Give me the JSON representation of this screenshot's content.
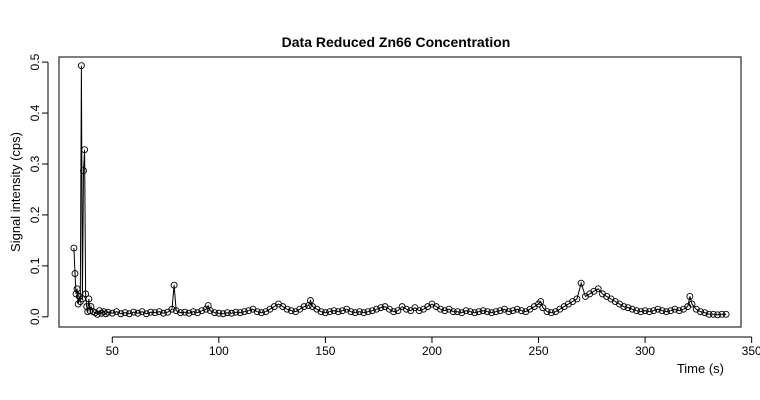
{
  "chart_data": {
    "type": "line",
    "title": "Data Reduced Zn66 Concentration",
    "xlabel": "Time (s)",
    "ylabel": "Signal intensity (cps)",
    "xlim": [
      25,
      345
    ],
    "ylim": [
      -0.02,
      0.51
    ],
    "x_ticks": [
      50,
      100,
      150,
      200,
      250,
      300,
      350
    ],
    "y_ticks": [
      0.0,
      0.1,
      0.2,
      0.3,
      0.4,
      0.5
    ],
    "grid": false,
    "legend": "none",
    "marker": "open-circle",
    "series": [
      {
        "x": [
          32,
          32.5,
          33,
          33.5,
          34,
          34.5,
          35,
          35.5,
          36,
          36.5,
          37,
          37.5,
          38,
          38.5,
          39,
          39.5,
          40,
          41,
          42,
          43,
          44,
          45,
          46,
          47,
          48,
          50,
          52,
          54,
          56,
          58,
          60,
          62,
          64,
          66,
          68,
          70,
          72,
          74,
          76,
          78,
          79,
          80,
          82,
          84,
          86,
          88,
          90,
          92,
          94,
          95,
          96,
          98,
          100,
          102,
          104,
          106,
          108,
          110,
          112,
          114,
          116,
          118,
          120,
          122,
          124,
          126,
          128,
          130,
          132,
          134,
          136,
          138,
          140,
          142,
          143,
          144,
          146,
          148,
          150,
          152,
          154,
          156,
          158,
          160,
          162,
          164,
          166,
          168,
          170,
          172,
          174,
          176,
          178,
          180,
          182,
          184,
          186,
          188,
          190,
          192,
          194,
          196,
          198,
          200,
          202,
          204,
          206,
          208,
          210,
          212,
          214,
          216,
          218,
          220,
          222,
          224,
          226,
          228,
          230,
          232,
          234,
          236,
          238,
          240,
          242,
          244,
          246,
          248,
          250,
          251,
          252,
          254,
          256,
          258,
          260,
          262,
          264,
          266,
          268,
          270,
          272,
          274,
          276,
          278,
          280,
          282,
          284,
          286,
          288,
          290,
          292,
          294,
          296,
          298,
          300,
          302,
          304,
          306,
          308,
          310,
          312,
          314,
          316,
          318,
          320,
          321,
          322,
          324,
          326,
          328,
          330,
          332,
          334,
          336,
          338
        ],
        "y": [
          0.135,
          0.085,
          0.045,
          0.055,
          0.025,
          0.04,
          0.03,
          0.493,
          0.035,
          0.287,
          0.328,
          0.045,
          0.02,
          0.01,
          0.035,
          0.012,
          0.02,
          0.01,
          0.008,
          0.005,
          0.012,
          0.007,
          0.01,
          0.006,
          0.009,
          0.007,
          0.01,
          0.006,
          0.008,
          0.006,
          0.009,
          0.007,
          0.01,
          0.006,
          0.009,
          0.008,
          0.01,
          0.007,
          0.009,
          0.015,
          0.062,
          0.012,
          0.008,
          0.009,
          0.007,
          0.01,
          0.008,
          0.012,
          0.015,
          0.022,
          0.012,
          0.008,
          0.007,
          0.006,
          0.008,
          0.007,
          0.009,
          0.008,
          0.01,
          0.012,
          0.015,
          0.01,
          0.008,
          0.01,
          0.015,
          0.02,
          0.025,
          0.02,
          0.015,
          0.012,
          0.01,
          0.015,
          0.02,
          0.022,
          0.032,
          0.02,
          0.015,
          0.01,
          0.008,
          0.01,
          0.012,
          0.01,
          0.012,
          0.015,
          0.01,
          0.008,
          0.01,
          0.008,
          0.01,
          0.012,
          0.015,
          0.018,
          0.02,
          0.015,
          0.01,
          0.012,
          0.02,
          0.015,
          0.012,
          0.018,
          0.012,
          0.015,
          0.02,
          0.025,
          0.02,
          0.015,
          0.012,
          0.015,
          0.01,
          0.01,
          0.008,
          0.012,
          0.01,
          0.008,
          0.01,
          0.012,
          0.01,
          0.008,
          0.01,
          0.012,
          0.015,
          0.01,
          0.012,
          0.015,
          0.012,
          0.01,
          0.015,
          0.02,
          0.025,
          0.03,
          0.018,
          0.01,
          0.008,
          0.01,
          0.015,
          0.02,
          0.025,
          0.03,
          0.035,
          0.066,
          0.04,
          0.045,
          0.05,
          0.055,
          0.045,
          0.04,
          0.035,
          0.03,
          0.025,
          0.02,
          0.018,
          0.015,
          0.012,
          0.01,
          0.012,
          0.01,
          0.012,
          0.015,
          0.012,
          0.01,
          0.012,
          0.015,
          0.012,
          0.015,
          0.02,
          0.04,
          0.025,
          0.015,
          0.01,
          0.008,
          0.005,
          0.005,
          0.004,
          0.005,
          0.005
        ]
      }
    ]
  }
}
